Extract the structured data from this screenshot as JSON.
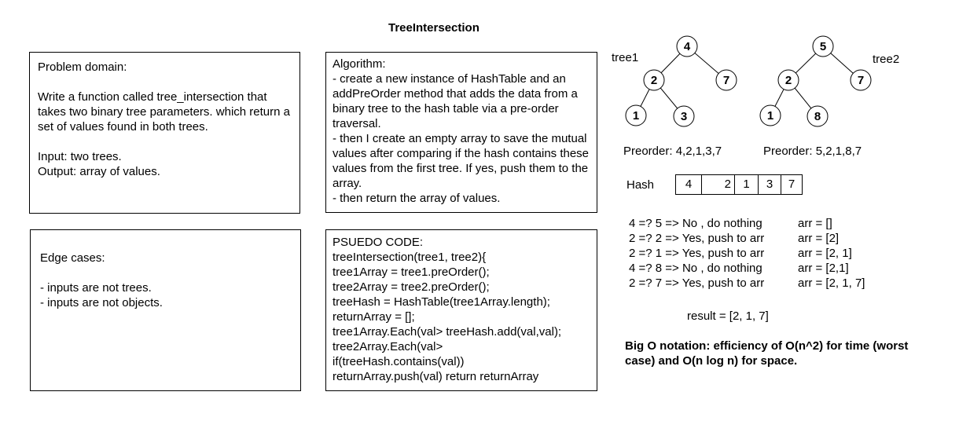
{
  "title": "TreeIntersection",
  "problem": {
    "heading": "Problem domain:",
    "description": "Write a function called tree_intersection that takes two binary tree parameters. which return a set of values found in both trees.",
    "input": "Input: two trees.",
    "output": "Output: array of values."
  },
  "algorithm": {
    "heading": "Algorithm:",
    "step1": "- create a new instance of HashTable and an addPreOrder method that adds the data from a binary tree to the hash table via a pre-order traversal.",
    "step2": "- then I create an empty array to save the mutual values after comparing if the hash contains these values from the first tree. If yes, push them to the array.",
    "step3": "- then return the array of values."
  },
  "edge_cases": {
    "heading": "Edge cases:",
    "items": [
      "- inputs are not trees.",
      "- inputs are not objects."
    ]
  },
  "pseudo": {
    "heading": "PSUEDO CODE:",
    "lines": [
      "treeIntersection(tree1, tree2){",
      "tree1Array = tree1.preOrder();",
      "tree2Array = tree2.preOrder();",
      "treeHash = HashTable(tree1Array.length);",
      "returnArray = [];",
      "tree1Array.Each(val> treeHash.add(val,val);",
      "tree2Array.Each(val>",
      "if(treeHash.contains(val))",
      "returnArray.push(val) return returnArray"
    ]
  },
  "tree1": {
    "label": "tree1",
    "nodes": {
      "root": "4",
      "left": "2",
      "right": "7",
      "left_left": "1",
      "left_right": "3"
    }
  },
  "tree2": {
    "label": "tree2",
    "nodes": {
      "root": "5",
      "left": "2",
      "right": "7",
      "left_left": "1",
      "left_right": "8"
    }
  },
  "preorder": {
    "tree1": "Preorder: 4,2,1,3,7",
    "tree2": "Preorder: 5,2,1,8,7"
  },
  "hash": {
    "label": "Hash",
    "cells": [
      "4",
      "2",
      "1",
      "3",
      "7"
    ]
  },
  "steps": [
    {
      "compare": "4 =? 5 => No , do nothing",
      "arr": "arr = []"
    },
    {
      "compare": "2 =? 2 => Yes, push to arr",
      "arr": "arr = [2]"
    },
    {
      "compare": "2 =? 1 => Yes, push to arr",
      "arr": "arr = [2, 1]"
    },
    {
      "compare": "4 =? 8 => No , do nothing",
      "arr": "arr = [2,1]"
    },
    {
      "compare": "2 =? 7 => Yes, push to arr",
      "arr": "arr = [2, 1, 7]"
    }
  ],
  "result": "result = [2, 1, 7]",
  "big_o": "Big O notation: efficiency of O(n^2) for time (worst case) and O(n log n) for space."
}
